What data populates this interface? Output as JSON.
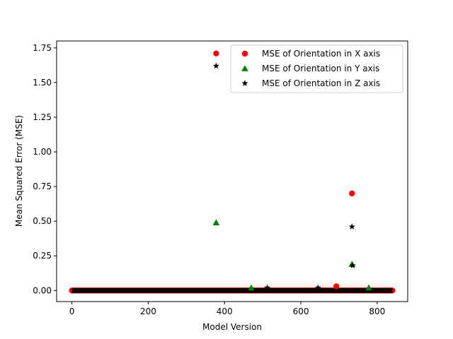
{
  "chart_data": {
    "type": "scatter",
    "xlabel": "Model Version",
    "ylabel": "Mean Squared Error (MSE)",
    "xlim": [
      -40,
      880
    ],
    "ylim": [
      -0.08,
      1.8
    ],
    "xticks": [
      0,
      200,
      400,
      600,
      800
    ],
    "yticks": [
      0.0,
      0.25,
      0.5,
      0.75,
      1.0,
      1.25,
      1.5,
      1.75
    ],
    "xtick_labels": [
      "0",
      "200",
      "400",
      "600",
      "800"
    ],
    "ytick_labels": [
      "0.00",
      "0.25",
      "0.50",
      "0.75",
      "1.00",
      "1.25",
      "1.50",
      "1.75"
    ],
    "grid": false,
    "legend": "top-right",
    "baseline": {
      "x_from": 0,
      "x_to": 840,
      "y": 0.0
    },
    "series": [
      {
        "name": "MSE of Orientation in X axis",
        "marker": "circle",
        "color": "#ff0000",
        "x": [
          378,
          693,
          734
        ],
        "y": [
          1.71,
          0.03,
          0.7
        ]
      },
      {
        "name": "MSE of Orientation in Y axis",
        "marker": "triangle",
        "color": "#008000",
        "x": [
          378,
          470,
          734,
          778
        ],
        "y": [
          0.49,
          0.02,
          0.19,
          0.02
        ]
      },
      {
        "name": "MSE of Orientation in Z axis",
        "marker": "star",
        "color": "#000000",
        "x": [
          378,
          512,
          645,
          734,
          736
        ],
        "y": [
          1.62,
          0.02,
          0.02,
          0.46,
          0.18
        ]
      }
    ]
  }
}
